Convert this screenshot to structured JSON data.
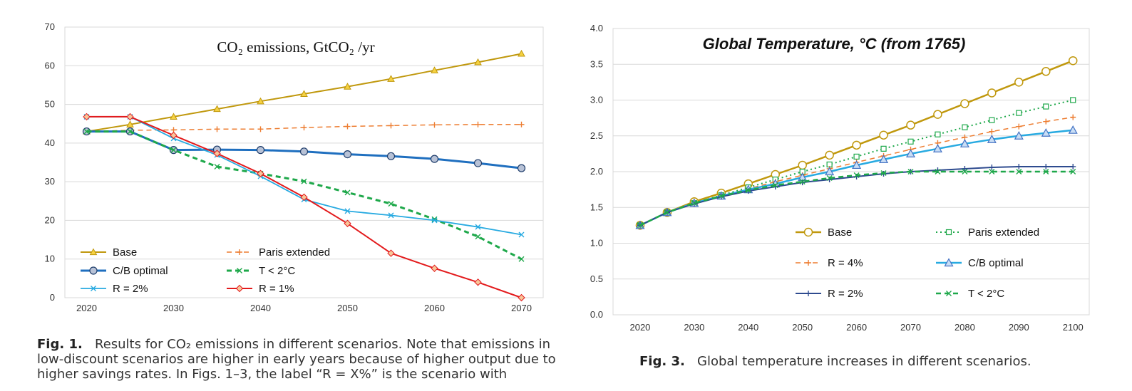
{
  "fig1": {
    "caption_label": "Fig. 1.",
    "caption_text": "Results for CO₂ emissions in different scenarios. Note that emissions in low-discount scenarios are higher in early years because of higher output due to higher savings rates. In Figs. 1–3, the label “R = X%” is the scenario with"
  },
  "fig3": {
    "caption_label": "Fig. 3.",
    "caption_text": "Global temperature increases in different scenarios."
  },
  "chart_data": [
    {
      "type": "line",
      "title": "CO₂ emissions, GtCO₂ /yr",
      "x_ticks": [
        2020,
        2030,
        2040,
        2050,
        2060,
        2070
      ],
      "y_ticks": [
        0,
        10,
        20,
        30,
        40,
        50,
        60,
        70
      ],
      "xlim": [
        2017.5,
        2072.5
      ],
      "ylim": [
        0,
        70
      ],
      "grid": true,
      "legend_position": "bottom-left",
      "series": [
        {
          "name": "Base",
          "color": "#c0980d",
          "marker": "triangle",
          "dash": "solid",
          "width": 2,
          "x": [
            2020,
            2025,
            2030,
            2035,
            2040,
            2045,
            2050,
            2055,
            2060,
            2065,
            2070
          ],
          "y": [
            43,
            44.8,
            46.8,
            48.8,
            50.8,
            52.7,
            54.6,
            56.6,
            58.8,
            60.9,
            63.1
          ]
        },
        {
          "name": "Paris extended",
          "color": "#ed7d31",
          "marker": "plus",
          "dash": "dash",
          "width": 1.5,
          "x": [
            2020,
            2025,
            2030,
            2035,
            2040,
            2045,
            2050,
            2055,
            2060,
            2065,
            2070
          ],
          "y": [
            43,
            43.3,
            43.4,
            43.6,
            43.6,
            44,
            44.3,
            44.5,
            44.7,
            44.8,
            44.8
          ]
        },
        {
          "name": "C/B optimal",
          "color": "#1f6fbf",
          "marker": "circle-gray",
          "dash": "solid",
          "width": 3,
          "x": [
            2020,
            2025,
            2030,
            2035,
            2040,
            2045,
            2050,
            2055,
            2060,
            2065,
            2070
          ],
          "y": [
            43,
            43,
            38.2,
            38.3,
            38.2,
            37.8,
            37.1,
            36.6,
            35.9,
            34.8,
            33.5
          ]
        },
        {
          "name": "T < 2°C",
          "color": "#1ea84a",
          "marker": "x",
          "dash": "dash",
          "width": 3,
          "x": [
            2020,
            2025,
            2030,
            2035,
            2040,
            2045,
            2050,
            2055,
            2060,
            2065,
            2070
          ],
          "y": [
            43,
            43,
            38.2,
            33.9,
            32.1,
            30.1,
            27.2,
            24.3,
            20.3,
            15.8,
            10
          ]
        },
        {
          "name": "R = 2%",
          "color": "#27aae1",
          "marker": "x",
          "dash": "solid",
          "width": 1.8,
          "x": [
            2020,
            2025,
            2030,
            2035,
            2040,
            2045,
            2050,
            2055,
            2060,
            2065,
            2070
          ],
          "y": [
            46.8,
            46.8,
            41.2,
            36.9,
            31.4,
            25.4,
            22.4,
            21.3,
            20,
            18.3,
            16.3
          ]
        },
        {
          "name": "R = 1%",
          "color": "#e31a1c",
          "marker": "diamond",
          "dash": "solid",
          "width": 2,
          "x": [
            2020,
            2025,
            2030,
            2035,
            2040,
            2045,
            2050,
            2055,
            2060,
            2065,
            2070
          ],
          "y": [
            46.8,
            46.8,
            42,
            37.3,
            32.1,
            26,
            19.2,
            11.5,
            7.6,
            4,
            0
          ]
        }
      ],
      "legend_order": [
        "Base",
        "Paris extended",
        "C/B optimal",
        "T < 2°C",
        "R = 2%",
        "R = 1%"
      ]
    },
    {
      "type": "line",
      "title": "Global Temperature, °C (from 1765)",
      "x_ticks": [
        2020,
        2030,
        2040,
        2050,
        2060,
        2070,
        2080,
        2090,
        2100
      ],
      "y_ticks": [
        "0.0",
        "0.5",
        "1.0",
        "1.5",
        "2.0",
        "2.5",
        "3.0",
        "3.5",
        "4.0"
      ],
      "xlim": [
        2015,
        2103
      ],
      "ylim": [
        0,
        4
      ],
      "grid": true,
      "legend_position": "bottom-center",
      "series": [
        {
          "name": "Base",
          "color": "#c0980d",
          "marker": "circle-open",
          "dash": "solid",
          "width": 2.5,
          "x": [
            2020,
            2025,
            2030,
            2035,
            2040,
            2045,
            2050,
            2055,
            2060,
            2065,
            2070,
            2075,
            2080,
            2085,
            2090,
            2095,
            2100
          ],
          "y": [
            1.25,
            1.43,
            1.58,
            1.7,
            1.83,
            1.96,
            2.09,
            2.23,
            2.37,
            2.51,
            2.65,
            2.8,
            2.95,
            3.1,
            3.25,
            3.4,
            3.55
          ]
        },
        {
          "name": "Paris extended",
          "color": "#1ea84a",
          "marker": "square-open",
          "dash": "dot",
          "width": 2,
          "x": [
            2020,
            2025,
            2030,
            2035,
            2040,
            2045,
            2050,
            2055,
            2060,
            2065,
            2070,
            2075,
            2080,
            2085,
            2090,
            2095,
            2100
          ],
          "y": [
            1.25,
            1.43,
            1.56,
            1.67,
            1.78,
            1.89,
            2.0,
            2.1,
            2.21,
            2.32,
            2.42,
            2.52,
            2.62,
            2.72,
            2.82,
            2.91,
            3.0
          ]
        },
        {
          "name": "R = 4%",
          "color": "#ed7d31",
          "marker": "plus",
          "dash": "dash",
          "width": 1.5,
          "x": [
            2020,
            2025,
            2030,
            2035,
            2040,
            2045,
            2050,
            2055,
            2060,
            2065,
            2070,
            2075,
            2080,
            2085,
            2090,
            2095,
            2100
          ],
          "y": [
            1.25,
            1.43,
            1.56,
            1.66,
            1.76,
            1.86,
            1.95,
            2.04,
            2.13,
            2.22,
            2.31,
            2.4,
            2.48,
            2.56,
            2.63,
            2.7,
            2.76
          ]
        },
        {
          "name": "C/B optimal",
          "color": "#27aae1",
          "marker": "triangle-open",
          "dash": "solid",
          "width": 2.5,
          "x": [
            2020,
            2025,
            2030,
            2035,
            2040,
            2045,
            2050,
            2055,
            2060,
            2065,
            2070,
            2075,
            2080,
            2085,
            2090,
            2095,
            2100
          ],
          "y": [
            1.25,
            1.43,
            1.56,
            1.66,
            1.75,
            1.83,
            1.92,
            2.0,
            2.09,
            2.17,
            2.25,
            2.32,
            2.39,
            2.45,
            2.5,
            2.54,
            2.58
          ]
        },
        {
          "name": "R = 2%",
          "color": "#2e4b8f",
          "marker": "plus",
          "dash": "solid",
          "width": 2,
          "x": [
            2020,
            2025,
            2030,
            2035,
            2040,
            2045,
            2050,
            2055,
            2060,
            2065,
            2070,
            2075,
            2080,
            2085,
            2090,
            2095,
            2100
          ],
          "y": [
            1.25,
            1.43,
            1.55,
            1.65,
            1.73,
            1.79,
            1.85,
            1.89,
            1.93,
            1.97,
            2.0,
            2.02,
            2.04,
            2.06,
            2.07,
            2.07,
            2.07
          ]
        },
        {
          "name": "T < 2°C",
          "color": "#1ea84a",
          "marker": "x",
          "dash": "dash",
          "width": 2.5,
          "x": [
            2020,
            2025,
            2030,
            2035,
            2040,
            2045,
            2050,
            2055,
            2060,
            2065,
            2070,
            2075,
            2080,
            2085,
            2090,
            2095,
            2100
          ],
          "y": [
            1.25,
            1.43,
            1.56,
            1.66,
            1.74,
            1.81,
            1.86,
            1.91,
            1.95,
            1.98,
            2.0,
            2.0,
            2.0,
            2.0,
            2.0,
            2.0,
            2.0
          ]
        }
      ],
      "legend_order": [
        "Base",
        "Paris extended",
        "R = 4%",
        "C/B optimal",
        "R = 2%",
        "T < 2°C"
      ]
    }
  ]
}
